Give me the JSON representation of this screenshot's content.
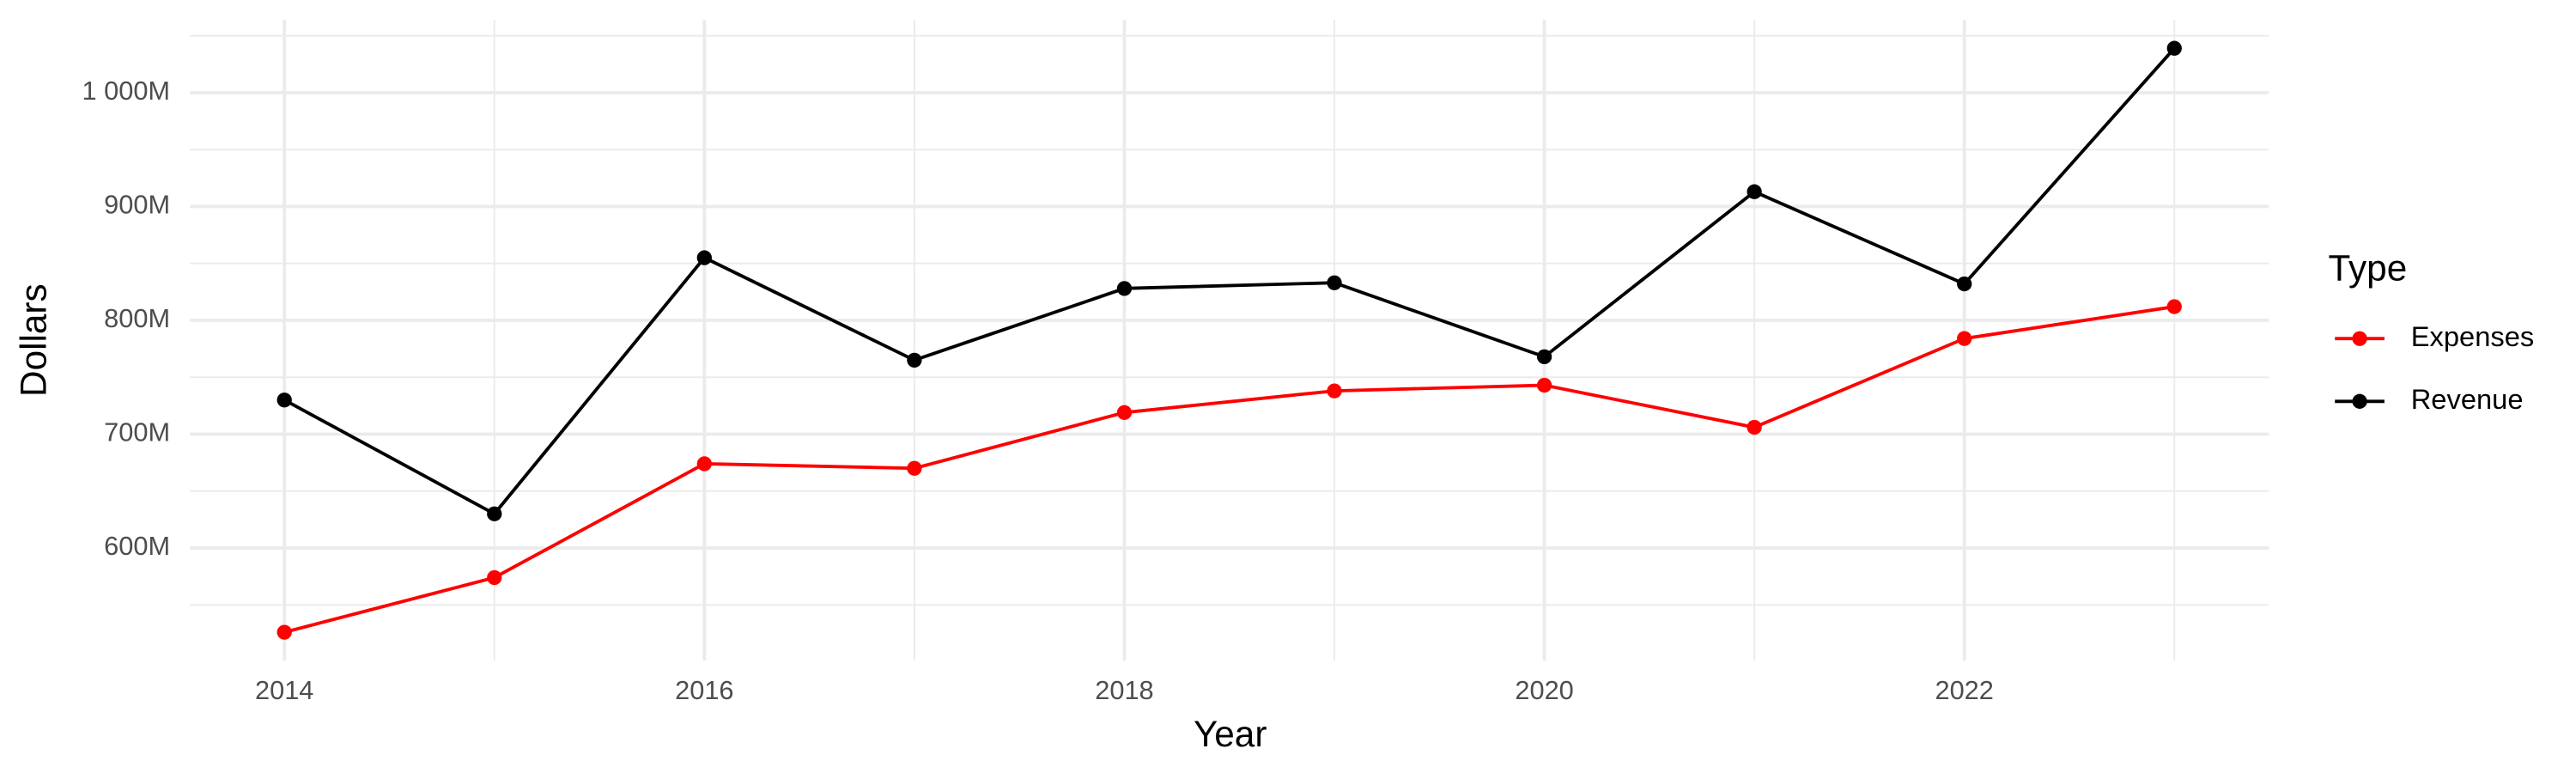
{
  "chart_data": {
    "type": "line",
    "x_label": "Year",
    "y_label": "Dollars",
    "legend_title": "Type",
    "x": [
      2014,
      2015,
      2016,
      2017,
      2018,
      2019,
      2020,
      2021,
      2022,
      2023
    ],
    "series": [
      {
        "name": "Expenses",
        "color": "#ff0000",
        "values": [
          526,
          574,
          674,
          670,
          719,
          738,
          743,
          706,
          784,
          812
        ]
      },
      {
        "name": "Revenue",
        "color": "#000000",
        "values": [
          730,
          630,
          855,
          765,
          828,
          833,
          768,
          913,
          832,
          1039
        ]
      }
    ],
    "xlim": [
      2013.55,
      2023.45
    ],
    "ylim": [
      501,
      1064
    ],
    "xticks": [
      2014,
      2016,
      2018,
      2020,
      2022
    ],
    "yticks": [
      {
        "value": 600,
        "label": "600M"
      },
      {
        "value": 700,
        "label": "700M"
      },
      {
        "value": 800,
        "label": "800M"
      },
      {
        "value": 900,
        "label": "900M"
      },
      {
        "value": 1000,
        "label": "1 000M"
      }
    ],
    "grid": true,
    "legend": "right"
  }
}
